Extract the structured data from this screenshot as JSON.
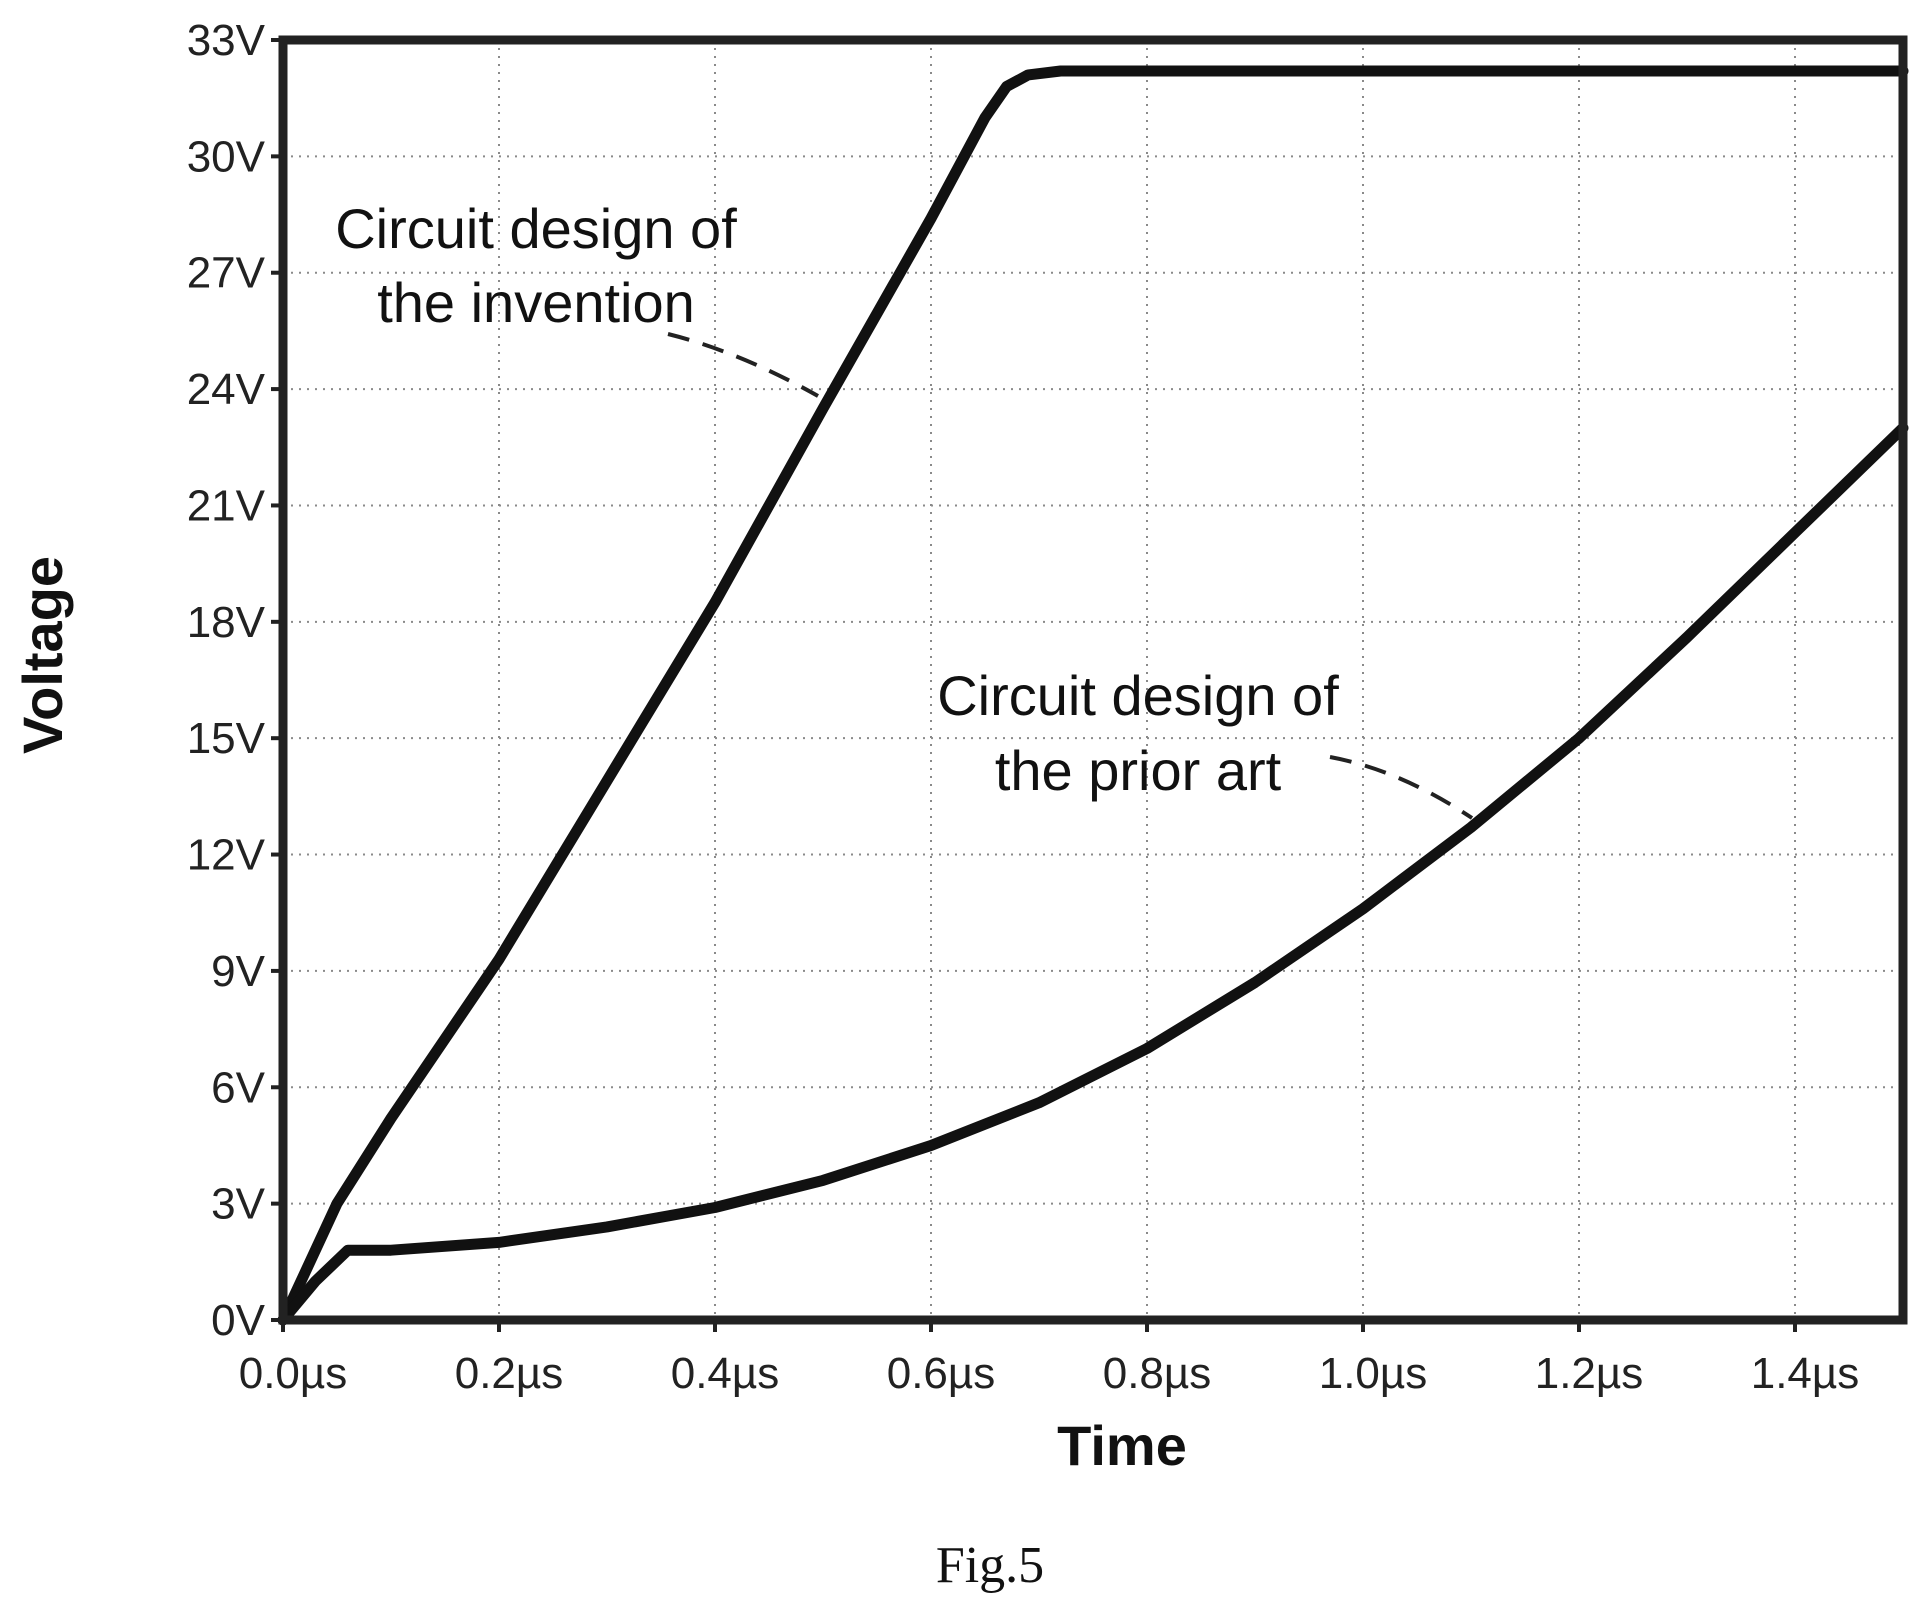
{
  "chart_data": {
    "type": "line",
    "xlabel": "Time",
    "ylabel": "Voltage",
    "xlim": [
      0.0,
      1.5
    ],
    "ylim": [
      0,
      33
    ],
    "x_unit": "µs",
    "y_unit": "V",
    "x_ticks": [
      "0.0µs",
      "0.2µs",
      "0.4µs",
      "0.6µs",
      "0.8µs",
      "1.0µs",
      "1.2µs",
      "1.4µs"
    ],
    "x_tick_values": [
      0.0,
      0.2,
      0.4,
      0.6,
      0.8,
      1.0,
      1.2,
      1.4
    ],
    "y_ticks": [
      "0V",
      "3V",
      "6V",
      "9V",
      "12V",
      "15V",
      "18V",
      "21V",
      "24V",
      "27V",
      "30V",
      "33V"
    ],
    "y_tick_values": [
      0,
      3,
      6,
      9,
      12,
      15,
      18,
      21,
      24,
      27,
      30,
      33
    ],
    "grid": true,
    "series": [
      {
        "name": "Circuit design of the invention",
        "x": [
          0.0,
          0.05,
          0.1,
          0.2,
          0.3,
          0.4,
          0.5,
          0.6,
          0.65,
          0.67,
          0.69,
          0.72,
          0.8,
          1.0,
          1.2,
          1.4,
          1.5
        ],
        "y": [
          0.0,
          3.0,
          5.2,
          9.3,
          13.9,
          18.5,
          23.5,
          28.4,
          31.0,
          31.8,
          32.1,
          32.2,
          32.2,
          32.2,
          32.2,
          32.2,
          32.2
        ]
      },
      {
        "name": "Circuit design of the prior art",
        "x": [
          0.0,
          0.03,
          0.06,
          0.1,
          0.2,
          0.3,
          0.4,
          0.5,
          0.6,
          0.7,
          0.8,
          0.9,
          1.0,
          1.1,
          1.2,
          1.3,
          1.4,
          1.5
        ],
        "y": [
          0.0,
          1.0,
          1.8,
          1.8,
          2.0,
          2.4,
          2.9,
          3.6,
          4.5,
          5.6,
          7.0,
          8.7,
          10.6,
          12.7,
          15.0,
          17.6,
          20.3,
          23.0
        ]
      }
    ],
    "annotations": [
      {
        "lines": [
          "Circuit design of",
          "the invention"
        ],
        "points_to_series": 0
      },
      {
        "lines": [
          "Circuit design of",
          "the prior art"
        ],
        "points_to_series": 1
      }
    ],
    "caption": "Fig.5"
  }
}
